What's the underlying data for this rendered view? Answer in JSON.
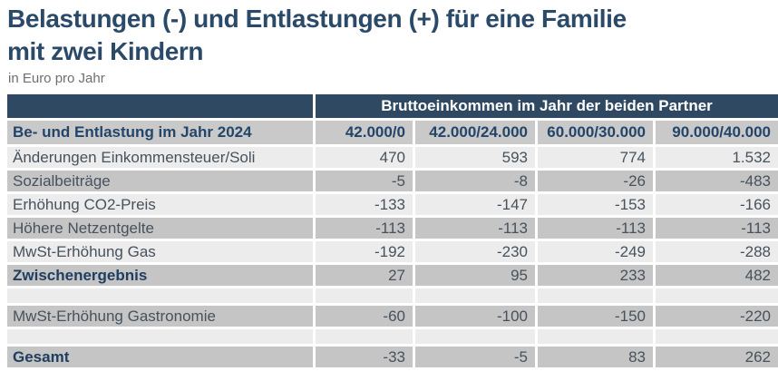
{
  "title_lines": [
    "Belastungen (-) und Entlastungen (+) für eine Familie",
    "mit zwei Kindern"
  ],
  "title": "Belastungen (-) und Entlastungen (+) für eine Familie mit zwei Kindern",
  "subtitle": "in Euro pro Jahr",
  "colors": {
    "header_navy": "#2e4961",
    "title_navy": "#2b4a6a",
    "row_light_gray": "#ececec",
    "row_dark_gray": "#c5c5c5",
    "column_header_gray": "#c9c9c9",
    "body_text": "#47525d",
    "bold_text": "#1f3e60",
    "header_text_white": "#ffffff",
    "subtitle_gray": "#6f6f6f"
  },
  "table": {
    "group_header": "Bruttoeinkommen im Jahr der beiden Partner",
    "row_header_label": "Be- und Entlastung im Jahr 2024",
    "columns": [
      "42.000/0",
      "42.000/24.000",
      "60.000/30.000",
      "90.000/40.000"
    ],
    "rows": [
      {
        "label": "Änderungen Einkommensteuer/Soli",
        "values": [
          "470",
          "593",
          "774",
          "1.532"
        ],
        "shade": "light",
        "bold": false,
        "spacer": false
      },
      {
        "label": "Sozialbeiträge",
        "values": [
          "-5",
          "-8",
          "-26",
          "-483"
        ],
        "shade": "dark",
        "bold": false,
        "spacer": false
      },
      {
        "label": "Erhöhung CO2-Preis",
        "values": [
          "-133",
          "-147",
          "-153",
          "-166"
        ],
        "shade": "light",
        "bold": false,
        "spacer": false
      },
      {
        "label": "Höhere Netzentgelte",
        "values": [
          "-113",
          "-113",
          "-113",
          "-113"
        ],
        "shade": "dark",
        "bold": false,
        "spacer": false
      },
      {
        "label": "MwSt-Erhöhung Gas",
        "values": [
          "-192",
          "-230",
          "-249",
          "-288"
        ],
        "shade": "light",
        "bold": false,
        "spacer": false
      },
      {
        "label": "Zwischenergebnis",
        "values": [
          "27",
          "95",
          "233",
          "482"
        ],
        "shade": "dark",
        "bold": true,
        "spacer": false
      },
      {
        "label": "",
        "values": [
          "",
          "",
          "",
          ""
        ],
        "shade": "light",
        "bold": false,
        "spacer": true
      },
      {
        "label": "MwSt-Erhöhung Gastronomie",
        "values": [
          "-60",
          "-100",
          "-150",
          "-220"
        ],
        "shade": "dark",
        "bold": false,
        "spacer": false
      },
      {
        "label": "",
        "values": [
          "",
          "",
          "",
          ""
        ],
        "shade": "light",
        "bold": false,
        "spacer": true
      },
      {
        "label": "Gesamt",
        "values": [
          "-33",
          "-5",
          "83",
          "262"
        ],
        "shade": "dark",
        "bold": true,
        "spacer": false
      }
    ]
  },
  "chart_data": {
    "type": "table",
    "title": "Belastungen (-) und Entlastungen (+) für eine Familie mit zwei Kindern",
    "subtitle": "in Euro pro Jahr",
    "group_header": "Bruttoeinkommen im Jahr der beiden Partner",
    "row_header": "Be- und Entlastung im Jahr 2024",
    "columns": [
      "42.000/0",
      "42.000/24.000",
      "60.000/30.000",
      "90.000/40.000"
    ],
    "rows": [
      {
        "label": "Änderungen Einkommensteuer/Soli",
        "values": [
          470,
          593,
          774,
          1532
        ]
      },
      {
        "label": "Sozialbeiträge",
        "values": [
          -5,
          -8,
          -26,
          -483
        ]
      },
      {
        "label": "Erhöhung CO2-Preis",
        "values": [
          -133,
          -147,
          -153,
          -166
        ]
      },
      {
        "label": "Höhere Netzentgelte",
        "values": [
          -113,
          -113,
          -113,
          -113
        ]
      },
      {
        "label": "MwSt-Erhöhung Gas",
        "values": [
          -192,
          -230,
          -249,
          -288
        ]
      },
      {
        "label": "Zwischenergebnis",
        "values": [
          27,
          95,
          233,
          482
        ]
      },
      {
        "label": "MwSt-Erhöhung Gastronomie",
        "values": [
          -60,
          -100,
          -150,
          -220
        ]
      },
      {
        "label": "Gesamt",
        "values": [
          -33,
          -5,
          83,
          262
        ]
      }
    ]
  }
}
